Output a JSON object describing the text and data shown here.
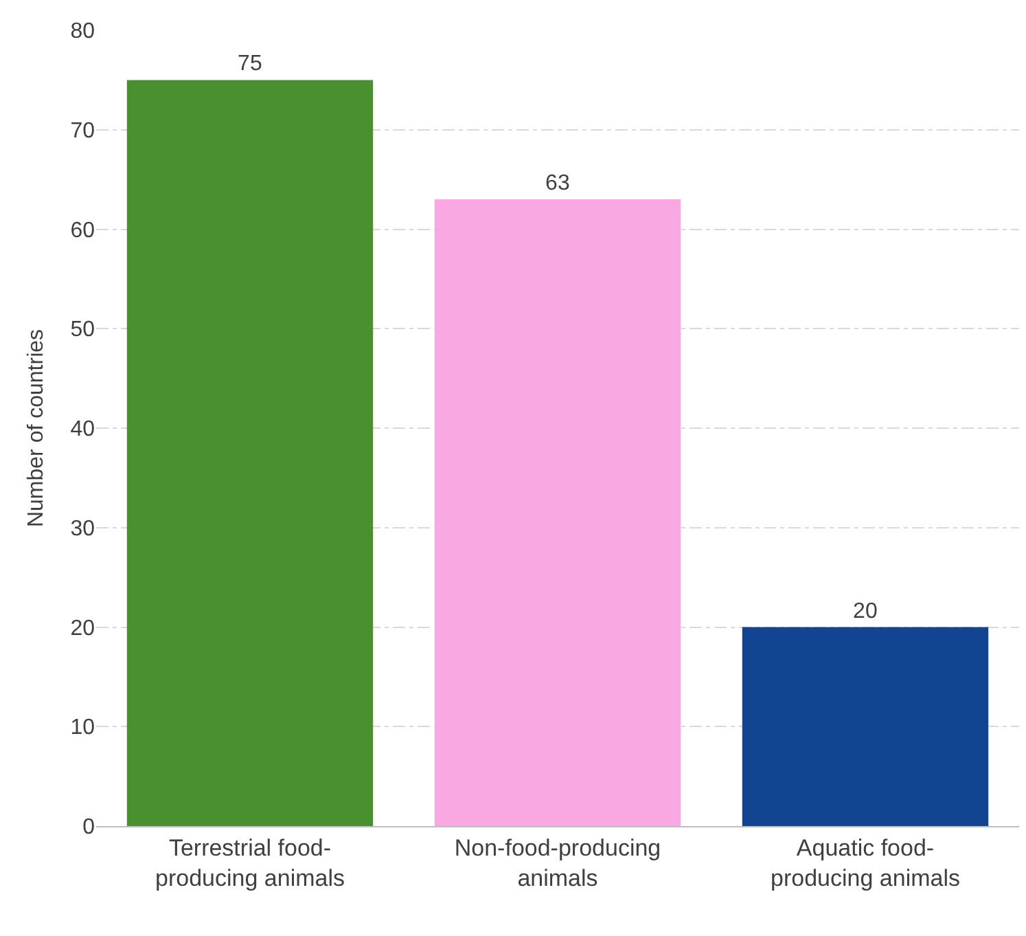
{
  "chart_data": {
    "type": "bar",
    "ylabel": "Number of countries",
    "categories": [
      "Terrestrial food-\nproducing animals",
      "Non-food-producing\nanimals",
      "Aquatic food-\nproducing animals"
    ],
    "values": [
      75,
      63,
      20
    ],
    "colors": [
      "#4a9030",
      "#f9a8e1",
      "#134492"
    ],
    "ylim": [
      0,
      80
    ],
    "yticks": [
      0,
      10,
      20,
      30,
      40,
      50,
      60,
      70,
      80
    ],
    "grid": "y",
    "data_labels": true
  }
}
